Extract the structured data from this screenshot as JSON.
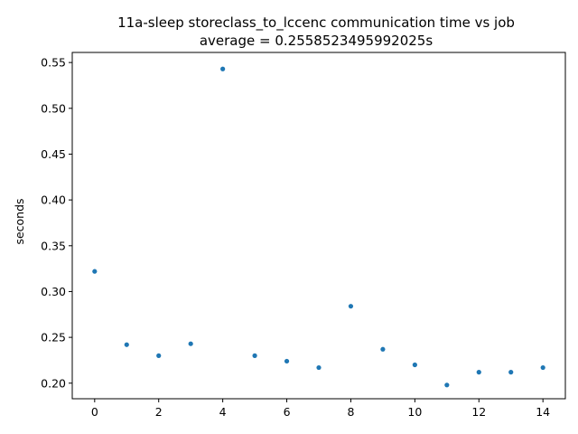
{
  "chart_data": {
    "type": "scatter",
    "title": "11a-sleep storeclass_to_lccenc communication time vs job",
    "subtitle": "average = 0.2558523495992025s",
    "xlabel": "",
    "ylabel": "seconds",
    "xlim": [
      -0.7,
      14.7
    ],
    "ylim": [
      0.183,
      0.561
    ],
    "x_ticks": [
      0,
      2,
      4,
      6,
      8,
      10,
      12,
      14
    ],
    "y_ticks": [
      0.2,
      0.25,
      0.3,
      0.35,
      0.4,
      0.45,
      0.5,
      0.55
    ],
    "grid": false,
    "legend": "none",
    "marker_color": "#1f77b4",
    "x": [
      0,
      1,
      2,
      3,
      4,
      5,
      6,
      7,
      8,
      9,
      10,
      11,
      12,
      13,
      14
    ],
    "y": [
      0.322,
      0.242,
      0.23,
      0.243,
      0.543,
      0.23,
      0.224,
      0.217,
      0.284,
      0.237,
      0.22,
      0.198,
      0.212,
      0.212,
      0.217
    ]
  }
}
